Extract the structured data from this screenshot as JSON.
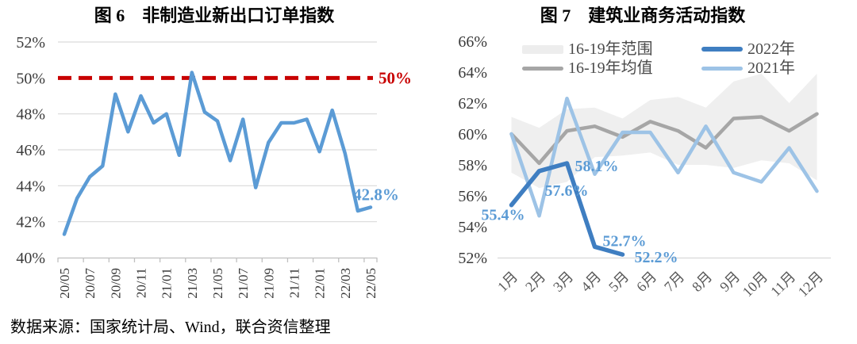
{
  "source_note": "数据来源：国家统计局、Wind，联合资信整理",
  "chart_data": [
    {
      "id": "fig6",
      "type": "line",
      "title": "图 6　非制造业新出口订单指数",
      "ylim": [
        40,
        52
      ],
      "yticks": [
        52,
        50,
        48,
        46,
        44,
        42,
        40
      ],
      "ytick_suffix": "%",
      "grid": true,
      "legend_position": "none",
      "x": [
        "20/05",
        "20/06",
        "20/07",
        "20/08",
        "20/09",
        "20/10",
        "20/11",
        "20/12",
        "21/01",
        "21/02",
        "21/03",
        "21/04",
        "21/05",
        "21/06",
        "21/07",
        "21/08",
        "21/09",
        "21/10",
        "21/11",
        "21/12",
        "22/01",
        "22/02",
        "22/03",
        "22/04",
        "22/05"
      ],
      "x_tick_labels": [
        "20/05",
        "20/07",
        "20/09",
        "20/11",
        "21/01",
        "21/03",
        "21/05",
        "21/07",
        "21/09",
        "21/11",
        "22/01",
        "22/03",
        "22/05"
      ],
      "series": [
        {
          "name": "非制造业新出口订单指数",
          "color": "#5B9BD5",
          "values": [
            41.3,
            43.3,
            44.5,
            45.1,
            49.1,
            47.0,
            49.0,
            47.5,
            48.0,
            45.7,
            50.3,
            48.1,
            47.6,
            45.4,
            47.7,
            43.9,
            46.4,
            47.5,
            47.5,
            47.7,
            45.9,
            48.2,
            45.8,
            42.6,
            42.8
          ]
        }
      ],
      "reference_line": {
        "value": 50,
        "label": "50%",
        "color": "#C80000",
        "style": "dashed"
      },
      "end_label": {
        "text": "42.8%",
        "color": "#5B9BD5"
      }
    },
    {
      "id": "fig7",
      "type": "line",
      "title": "图 7　建筑业商务活动指数",
      "ylim": [
        52,
        66
      ],
      "yticks": [
        66,
        64,
        62,
        60,
        58,
        56,
        54,
        52
      ],
      "ytick_suffix": "%",
      "grid": false,
      "legend_position": "top",
      "x": [
        "1月",
        "2月",
        "3月",
        "4月",
        "5月",
        "6月",
        "7月",
        "8月",
        "9月",
        "10月",
        "11月",
        "12月"
      ],
      "band": {
        "name": "16-19年范围",
        "color": "#EDEDED",
        "lower": [
          57.5,
          56.5,
          56.9,
          58.5,
          58.6,
          58.8,
          58.0,
          58.0,
          57.8,
          58.3,
          58.1,
          57.0
        ],
        "upper": [
          61.1,
          60.4,
          61.6,
          61.7,
          61.0,
          62.2,
          62.4,
          61.7,
          63.4,
          63.9,
          62.0,
          63.9
        ]
      },
      "series": [
        {
          "name": "16-19年均值",
          "color": "#A6A6A6",
          "width": 4.5,
          "values": [
            60.0,
            58.1,
            60.2,
            60.5,
            59.8,
            60.8,
            60.2,
            59.1,
            61.0,
            61.1,
            60.2,
            61.3
          ]
        },
        {
          "name": "2021年",
          "color": "#9DC3E6",
          "width": 4.5,
          "values": [
            60.0,
            54.7,
            62.3,
            57.4,
            60.1,
            60.1,
            57.5,
            60.5,
            57.5,
            56.9,
            59.1,
            56.3
          ]
        },
        {
          "name": "2022年",
          "color": "#3F7EC1",
          "width": 5.5,
          "values": [
            55.4,
            57.6,
            58.1,
            52.7,
            52.2
          ]
        }
      ],
      "point_labels": [
        {
          "series": "2022年",
          "index": 0,
          "text": "55.4%"
        },
        {
          "series": "2022年",
          "index": 1,
          "text": "57.6%"
        },
        {
          "series": "2022年",
          "index": 2,
          "text": "58.1%"
        },
        {
          "series": "2022年",
          "index": 3,
          "text": "52.7%"
        },
        {
          "series": "2022年",
          "index": 4,
          "text": "52.2%"
        }
      ],
      "point_label_color": "#5B9BD5",
      "legend": {
        "items": [
          {
            "label": "16-19年范围",
            "swatch": "band"
          },
          {
            "label": "2022年",
            "swatch": "line-thick"
          },
          {
            "label": "16-19年均值",
            "swatch": "line"
          },
          {
            "label": "2021年",
            "swatch": "line"
          }
        ]
      }
    }
  ]
}
